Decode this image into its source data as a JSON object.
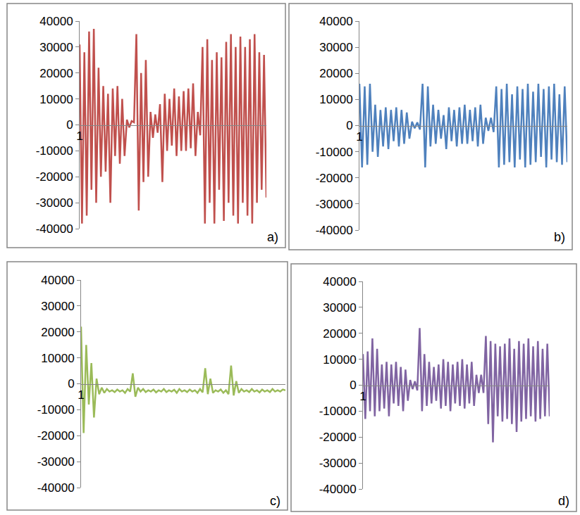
{
  "chart_data": [
    {
      "type": "line",
      "title": "a)",
      "color": "#c0504d",
      "grid": false,
      "ylim": [
        -40000,
        40000
      ],
      "yticks": [
        -40000,
        -30000,
        -20000,
        -10000,
        0,
        10000,
        20000,
        30000,
        40000
      ],
      "categories": [
        "1",
        null,
        null,
        null,
        null,
        null,
        null,
        null,
        null,
        null,
        null,
        null,
        null,
        null,
        null,
        null,
        null,
        null,
        null,
        null,
        null,
        null,
        null,
        null,
        null,
        null,
        null,
        null,
        null,
        null,
        null,
        null,
        null,
        null,
        null,
        null,
        null,
        null,
        null,
        null,
        null,
        null,
        null,
        null,
        null,
        null,
        null,
        null,
        null,
        null,
        null,
        null,
        null,
        null,
        null,
        null,
        null,
        null,
        null,
        null,
        null,
        null,
        null,
        null,
        null,
        null,
        null,
        null,
        null,
        null,
        null,
        null,
        null,
        null,
        null,
        null,
        null,
        null,
        null,
        null
      ],
      "values": [
        31000,
        -38000,
        28000,
        -35000,
        36000,
        -25000,
        37000,
        -30000,
        22000,
        -20000,
        15000,
        -18000,
        12000,
        -30000,
        14000,
        -12000,
        15000,
        -15000,
        10000,
        -12000,
        2000,
        -1000,
        1500,
        1000,
        35000,
        -33000,
        20000,
        -22000,
        25000,
        -20000,
        5000,
        -5000,
        4000,
        -3000,
        8000,
        -22000,
        12000,
        -10000,
        10000,
        -8000,
        14000,
        -12000,
        11000,
        -10000,
        13000,
        -10000,
        14000,
        -9000,
        16000,
        -12000,
        5000,
        -4000,
        30000,
        -38000,
        33000,
        -30000,
        25000,
        -38000,
        28000,
        -25000,
        26000,
        -37000,
        32000,
        -30000,
        35000,
        -35000,
        30000,
        -38000,
        34000,
        -30000,
        30000,
        -35000,
        33000,
        -38000,
        35000,
        -30000,
        28000,
        -25000,
        27000,
        -28000
      ]
    },
    {
      "type": "line",
      "title": "b)",
      "color": "#4f81bd",
      "grid": false,
      "ylim": [
        -40000,
        40000
      ],
      "yticks": [
        -40000,
        -30000,
        -20000,
        -10000,
        0,
        10000,
        20000,
        30000,
        40000
      ],
      "categories": [
        "1",
        null,
        null,
        null,
        null,
        null,
        null,
        null,
        null,
        null,
        null,
        null,
        null,
        null,
        null,
        null,
        null,
        null,
        null,
        null,
        null,
        null,
        null,
        null,
        null,
        null,
        null,
        null,
        null,
        null,
        null,
        null,
        null,
        null,
        null,
        null,
        null,
        null,
        null,
        null,
        null,
        null,
        null,
        null,
        null,
        null,
        null,
        null,
        null,
        null,
        null,
        null,
        null,
        null,
        null,
        null,
        null,
        null,
        null,
        null,
        null,
        null,
        null,
        null,
        null,
        null,
        null,
        null,
        null,
        null,
        null,
        null,
        null,
        null,
        null,
        null,
        null,
        null,
        null,
        null
      ],
      "values": [
        16000,
        -16000,
        15000,
        -15000,
        16000,
        -10000,
        8000,
        -12000,
        6000,
        -8000,
        7000,
        -9000,
        6000,
        -6000,
        7000,
        -8000,
        6000,
        -7000,
        5000,
        -5000,
        1500,
        -1000,
        1200,
        -1500,
        16000,
        -16000,
        15000,
        -8000,
        8000,
        -7000,
        6000,
        -5000,
        4000,
        -9000,
        7000,
        -6000,
        6000,
        -8000,
        7000,
        -7000,
        8000,
        -7000,
        6000,
        -6000,
        7000,
        -8000,
        8000,
        -7000,
        3000,
        -2000,
        3000,
        -2500,
        15000,
        -16000,
        14000,
        -15000,
        16000,
        -14000,
        12000,
        -16000,
        15000,
        -13000,
        14000,
        -16000,
        16000,
        -15000,
        13000,
        -14000,
        16000,
        -12000,
        14000,
        -16000,
        15000,
        -13000,
        16000,
        -14000,
        12000,
        -15000,
        15000,
        -14000
      ]
    },
    {
      "type": "line",
      "title": "c)",
      "color": "#9bbb59",
      "grid": false,
      "ylim": [
        -40000,
        40000
      ],
      "yticks": [
        -40000,
        -30000,
        -20000,
        -10000,
        0,
        10000,
        20000,
        30000,
        40000
      ],
      "categories": [
        "1",
        null,
        null,
        null,
        null,
        null,
        null,
        null,
        null,
        null,
        null,
        null,
        null,
        null,
        null,
        null,
        null,
        null,
        null,
        null,
        null,
        null,
        null,
        null,
        null,
        null,
        null,
        null,
        null,
        null,
        null,
        null,
        null,
        null,
        null,
        null,
        null,
        null,
        null,
        null,
        null,
        null,
        null,
        null,
        null,
        null,
        null,
        null,
        null,
        null,
        null,
        null,
        null,
        null,
        null,
        null,
        null,
        null,
        null,
        null,
        null,
        null,
        null,
        null,
        null,
        null,
        null,
        null,
        null,
        null,
        null,
        null,
        null,
        null,
        null,
        null,
        null,
        null,
        null,
        null
      ],
      "values": [
        22000,
        -19000,
        15000,
        -8000,
        8000,
        -13000,
        2000,
        -4000,
        -1500,
        -3500,
        -2000,
        -3000,
        -2500,
        -3200,
        -2200,
        -3000,
        -2500,
        -3500,
        -2000,
        -3000,
        4000,
        -5000,
        -1500,
        -3000,
        -2000,
        -3200,
        -2500,
        -3000,
        -2200,
        -3300,
        -2500,
        -3000,
        -2000,
        -3200,
        -2500,
        -3000,
        -2300,
        -3500,
        -2000,
        -3000,
        -2500,
        -3200,
        -2200,
        -3000,
        -2500,
        -3500,
        -2000,
        -3300,
        6000,
        -4000,
        2000,
        -3500,
        -2500,
        -3000,
        -2200,
        -3500,
        -2500,
        -4000,
        7000,
        -4500,
        1000,
        -3500,
        -2000,
        -3000,
        -2500,
        -3200,
        -2000,
        -3000,
        -2500,
        -3300,
        -2200,
        -3000,
        -2500,
        -3200,
        -2000,
        -3000,
        -2500,
        -3000,
        -2200,
        -2500
      ]
    },
    {
      "type": "line",
      "title": "d)",
      "color": "#8064a2",
      "grid": false,
      "ylim": [
        -40000,
        40000
      ],
      "yticks": [
        -40000,
        -30000,
        -20000,
        -10000,
        0,
        10000,
        20000,
        30000,
        40000
      ],
      "categories": [
        "1",
        null,
        null,
        null,
        null,
        null,
        null,
        null,
        null,
        null,
        null,
        null,
        null,
        null,
        null,
        null,
        null,
        null,
        null,
        null,
        null,
        null,
        null,
        null,
        null,
        null,
        null,
        null,
        null,
        null,
        null,
        null,
        null,
        null,
        null,
        null,
        null,
        null,
        null,
        null,
        null,
        null,
        null,
        null,
        null,
        null,
        null,
        null,
        null,
        null,
        null,
        null,
        null,
        null,
        null,
        null,
        null,
        null,
        null,
        null,
        null,
        null,
        null,
        null,
        null,
        null,
        null,
        null,
        null,
        null,
        null,
        null,
        null,
        null,
        null,
        null,
        null,
        null,
        null,
        null
      ],
      "values": [
        12000,
        -13000,
        13000,
        -10000,
        18000,
        -12000,
        14000,
        -10000,
        8000,
        -9000,
        9000,
        -12000,
        8000,
        -7000,
        9000,
        -8000,
        7000,
        -10000,
        6000,
        -6000,
        2000,
        -1500,
        1500,
        -2000,
        22000,
        -10000,
        12000,
        -8000,
        9000,
        -7000,
        7000,
        -6000,
        8000,
        -9000,
        10000,
        -8000,
        9000,
        -10000,
        8000,
        -7000,
        9000,
        -8000,
        10000,
        -9000,
        8000,
        -7000,
        9000,
        -8000,
        4000,
        -3000,
        4000,
        -3000,
        19000,
        -15000,
        17000,
        -22000,
        16000,
        -12000,
        15000,
        -14000,
        16000,
        -13000,
        18000,
        -15000,
        14000,
        -18000,
        17000,
        -14000,
        16000,
        -13000,
        18000,
        -12000,
        15000,
        -14000,
        17000,
        -13000,
        14000,
        -12000,
        16000,
        -12000
      ]
    }
  ]
}
